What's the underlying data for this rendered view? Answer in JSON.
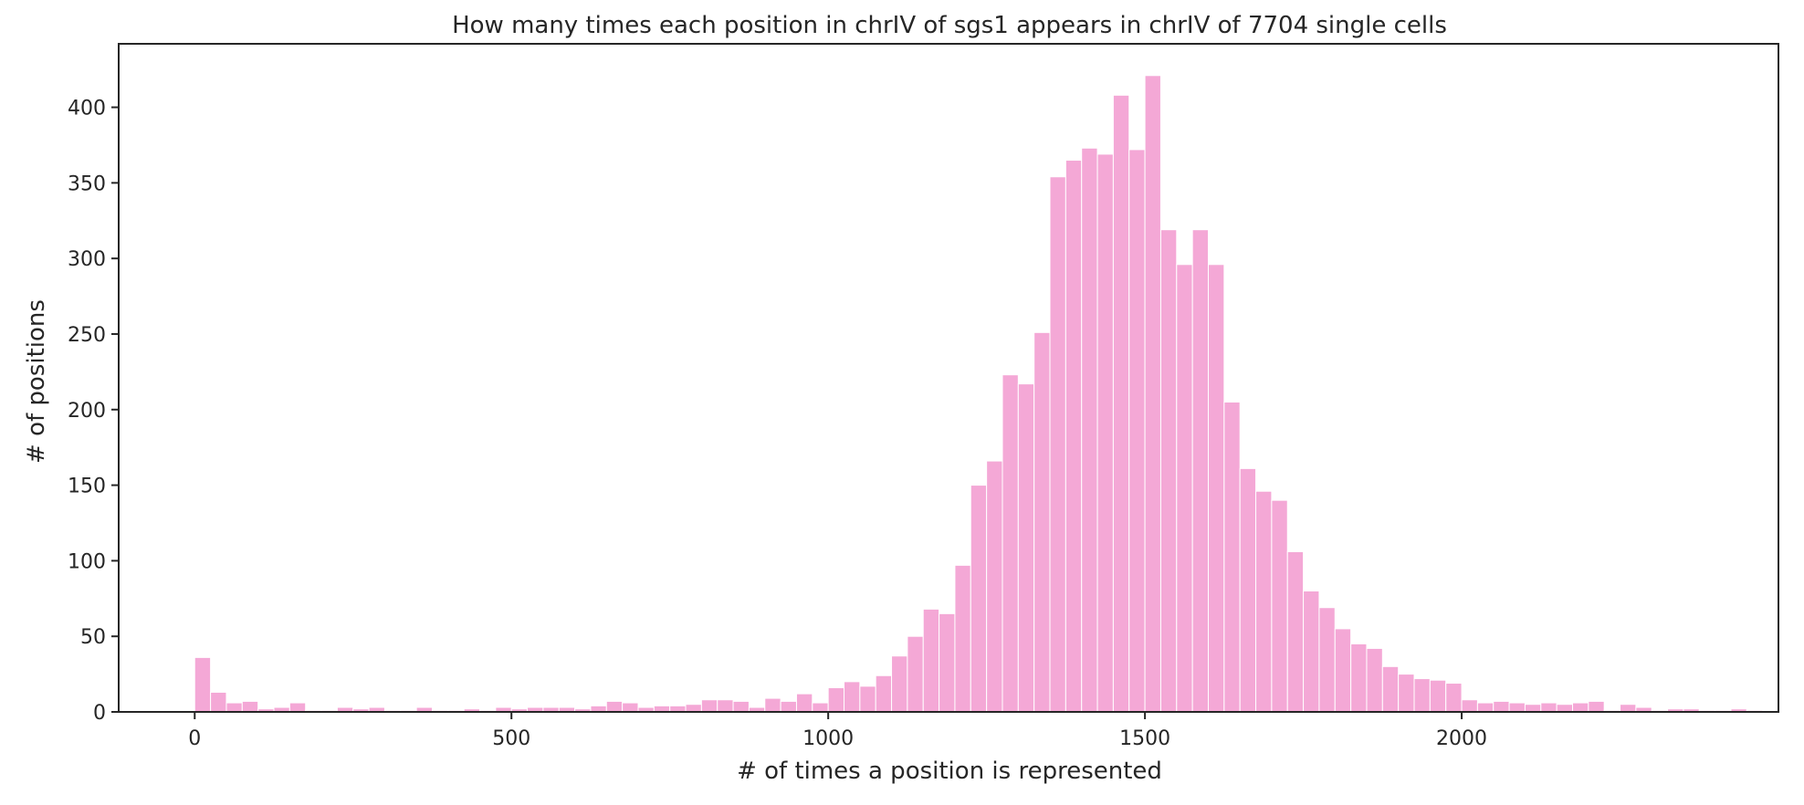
{
  "chart_data": {
    "type": "bar",
    "title": "How many times each position in chrIV of sgs1 appears in chrIV of 7704 single cells",
    "xlabel": "# of times a position is represented",
    "ylabel": "# of positions",
    "xlim": [
      -120,
      2500
    ],
    "ylim": [
      0,
      442
    ],
    "xticks": [
      0,
      500,
      1000,
      1500,
      2000
    ],
    "yticks": [
      0,
      50,
      100,
      150,
      200,
      250,
      300,
      350,
      400
    ],
    "bin_width": 25,
    "bar_color": "#f4a8d6",
    "bar_edge_color": "#ffffff",
    "grid": false,
    "bins": [
      {
        "x": 0,
        "count": 36
      },
      {
        "x": 25,
        "count": 13
      },
      {
        "x": 50,
        "count": 6
      },
      {
        "x": 75,
        "count": 7
      },
      {
        "x": 100,
        "count": 2
      },
      {
        "x": 125,
        "count": 3
      },
      {
        "x": 150,
        "count": 6
      },
      {
        "x": 175,
        "count": 1
      },
      {
        "x": 200,
        "count": 1
      },
      {
        "x": 225,
        "count": 3
      },
      {
        "x": 250,
        "count": 2
      },
      {
        "x": 275,
        "count": 3
      },
      {
        "x": 300,
        "count": 1
      },
      {
        "x": 325,
        "count": 1
      },
      {
        "x": 350,
        "count": 3
      },
      {
        "x": 375,
        "count": 1
      },
      {
        "x": 400,
        "count": 1
      },
      {
        "x": 425,
        "count": 2
      },
      {
        "x": 450,
        "count": 1
      },
      {
        "x": 475,
        "count": 3
      },
      {
        "x": 500,
        "count": 2
      },
      {
        "x": 525,
        "count": 3
      },
      {
        "x": 550,
        "count": 3
      },
      {
        "x": 575,
        "count": 3
      },
      {
        "x": 600,
        "count": 2
      },
      {
        "x": 625,
        "count": 4
      },
      {
        "x": 650,
        "count": 7
      },
      {
        "x": 675,
        "count": 6
      },
      {
        "x": 700,
        "count": 3
      },
      {
        "x": 725,
        "count": 4
      },
      {
        "x": 750,
        "count": 4
      },
      {
        "x": 775,
        "count": 5
      },
      {
        "x": 800,
        "count": 8
      },
      {
        "x": 825,
        "count": 8
      },
      {
        "x": 850,
        "count": 7
      },
      {
        "x": 875,
        "count": 3
      },
      {
        "x": 900,
        "count": 9
      },
      {
        "x": 925,
        "count": 7
      },
      {
        "x": 950,
        "count": 12
      },
      {
        "x": 975,
        "count": 6
      },
      {
        "x": 1000,
        "count": 16
      },
      {
        "x": 1025,
        "count": 20
      },
      {
        "x": 1050,
        "count": 17
      },
      {
        "x": 1075,
        "count": 24
      },
      {
        "x": 1100,
        "count": 37
      },
      {
        "x": 1125,
        "count": 50
      },
      {
        "x": 1150,
        "count": 68
      },
      {
        "x": 1175,
        "count": 65
      },
      {
        "x": 1200,
        "count": 97
      },
      {
        "x": 1225,
        "count": 150
      },
      {
        "x": 1250,
        "count": 166
      },
      {
        "x": 1275,
        "count": 223
      },
      {
        "x": 1300,
        "count": 217
      },
      {
        "x": 1325,
        "count": 251
      },
      {
        "x": 1350,
        "count": 354
      },
      {
        "x": 1375,
        "count": 365
      },
      {
        "x": 1400,
        "count": 373
      },
      {
        "x": 1425,
        "count": 369
      },
      {
        "x": 1450,
        "count": 408
      },
      {
        "x": 1475,
        "count": 372
      },
      {
        "x": 1500,
        "count": 421
      },
      {
        "x": 1525,
        "count": 319
      },
      {
        "x": 1550,
        "count": 296
      },
      {
        "x": 1575,
        "count": 319
      },
      {
        "x": 1600,
        "count": 296
      },
      {
        "x": 1625,
        "count": 205
      },
      {
        "x": 1650,
        "count": 161
      },
      {
        "x": 1675,
        "count": 146
      },
      {
        "x": 1700,
        "count": 140
      },
      {
        "x": 1725,
        "count": 106
      },
      {
        "x": 1750,
        "count": 80
      },
      {
        "x": 1775,
        "count": 69
      },
      {
        "x": 1800,
        "count": 55
      },
      {
        "x": 1825,
        "count": 45
      },
      {
        "x": 1850,
        "count": 42
      },
      {
        "x": 1875,
        "count": 30
      },
      {
        "x": 1900,
        "count": 25
      },
      {
        "x": 1925,
        "count": 22
      },
      {
        "x": 1950,
        "count": 21
      },
      {
        "x": 1975,
        "count": 19
      },
      {
        "x": 2000,
        "count": 8
      },
      {
        "x": 2025,
        "count": 6
      },
      {
        "x": 2050,
        "count": 7
      },
      {
        "x": 2075,
        "count": 6
      },
      {
        "x": 2100,
        "count": 5
      },
      {
        "x": 2125,
        "count": 6
      },
      {
        "x": 2150,
        "count": 5
      },
      {
        "x": 2175,
        "count": 6
      },
      {
        "x": 2200,
        "count": 7
      },
      {
        "x": 2225,
        "count": 1
      },
      {
        "x": 2250,
        "count": 5
      },
      {
        "x": 2275,
        "count": 3
      },
      {
        "x": 2300,
        "count": 1
      },
      {
        "x": 2325,
        "count": 2
      },
      {
        "x": 2350,
        "count": 2
      },
      {
        "x": 2375,
        "count": 1
      },
      {
        "x": 2400,
        "count": 1
      },
      {
        "x": 2425,
        "count": 2
      },
      {
        "x": 2450,
        "count": 1
      }
    ]
  }
}
